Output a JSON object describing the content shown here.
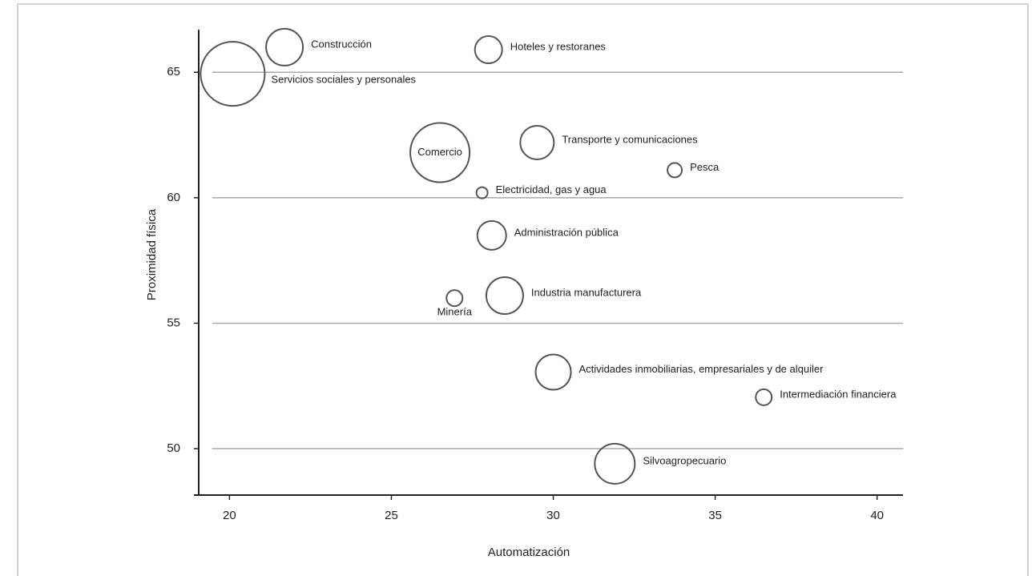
{
  "chart_data": {
    "type": "scatter",
    "x_label": "Automatización",
    "y_label": "Proximidad física",
    "xlim": [
      19.05,
      40.8
    ],
    "xticks": [
      20,
      25,
      30,
      35,
      40
    ],
    "ylim": [
      48.15,
      66.7
    ],
    "yticks": [
      50,
      55,
      60,
      65
    ],
    "grid": true,
    "color": "#555555",
    "labels": [
      "Servicios sociales y personales",
      "Construcción",
      "Hoteles y restoranes",
      "Comercio",
      "Transporte y comunicaciones",
      "Pesca",
      "Electricidad, gas y agua",
      "Administración pública",
      "Minería",
      "Industria manufacturera",
      "Actividades inmobiliarias, empresariales y de alquiler",
      "Intermediación financiera",
      "Silvoagropecuario"
    ],
    "x": [
      20.1,
      21.7,
      28.0,
      26.5,
      29.5,
      33.75,
      27.8,
      28.1,
      26.95,
      28.5,
      30.0,
      36.5,
      31.9
    ],
    "values": [
      64.94,
      66.0,
      65.9,
      61.8,
      62.2,
      61.1,
      60.2,
      58.5,
      56.0,
      56.1,
      53.05,
      52.05,
      49.4
    ],
    "sizes": [
      40,
      23,
      17,
      37,
      21,
      9,
      7,
      18,
      10,
      23,
      22,
      10,
      25
    ]
  }
}
